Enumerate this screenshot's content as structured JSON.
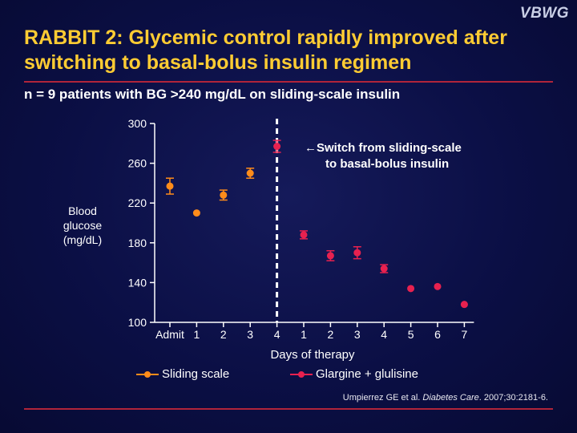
{
  "header": {
    "logo": "VBWG",
    "title": "RABBIT 2: Glycemic control rapidly improved after switching to basal-bolus insulin regimen",
    "subtitle": "n = 9 patients with BG >240 mg/dL on sliding-scale insulin"
  },
  "annotation": {
    "line1": "←Switch from sliding-scale",
    "line2": "to basal-bolus insulin"
  },
  "legend": {
    "sliding": "Sliding scale",
    "glargine": "Glargine + glulisine"
  },
  "citation": {
    "authors": "Umpierrez GE et al. ",
    "journal": "Diabetes Care",
    "rest": ". 2007;30:2181-6."
  },
  "colors": {
    "sliding": "#ff8c1a",
    "glargine": "#e8214f",
    "title": "#ffcc33"
  },
  "chart_data": {
    "type": "scatter",
    "xlabel": "Days of therapy",
    "ylabel_lines": [
      "Blood",
      "glucose",
      "(mg/dL)"
    ],
    "ylim": [
      100,
      300
    ],
    "yticks": [
      100,
      140,
      180,
      220,
      260,
      300
    ],
    "categories": [
      "Admit",
      "1",
      "2",
      "3",
      "4",
      "1",
      "2",
      "3",
      "4",
      "5",
      "6",
      "7"
    ],
    "switch_after_category": "4",
    "series": [
      {
        "name": "Sliding scale",
        "color": "#ff8c1a",
        "points": [
          {
            "category_index": 0,
            "value": 237,
            "error": 8
          },
          {
            "category_index": 1,
            "value": 210,
            "error": 0
          },
          {
            "category_index": 2,
            "value": 228,
            "error": 5
          },
          {
            "category_index": 3,
            "value": 250,
            "error": 5
          }
        ]
      },
      {
        "name": "Glargine + glulisine",
        "color": "#e8214f",
        "points": [
          {
            "category_index": 4,
            "value": 277,
            "error": 6
          },
          {
            "category_index": 5,
            "value": 188,
            "error": 4
          },
          {
            "category_index": 6,
            "value": 167,
            "error": 5
          },
          {
            "category_index": 7,
            "value": 170,
            "error": 6
          },
          {
            "category_index": 8,
            "value": 154,
            "error": 4
          },
          {
            "category_index": 9,
            "value": 134,
            "error": 0
          },
          {
            "category_index": 10,
            "value": 136,
            "error": 0
          },
          {
            "category_index": 11,
            "value": 118,
            "error": 0
          }
        ]
      }
    ]
  }
}
